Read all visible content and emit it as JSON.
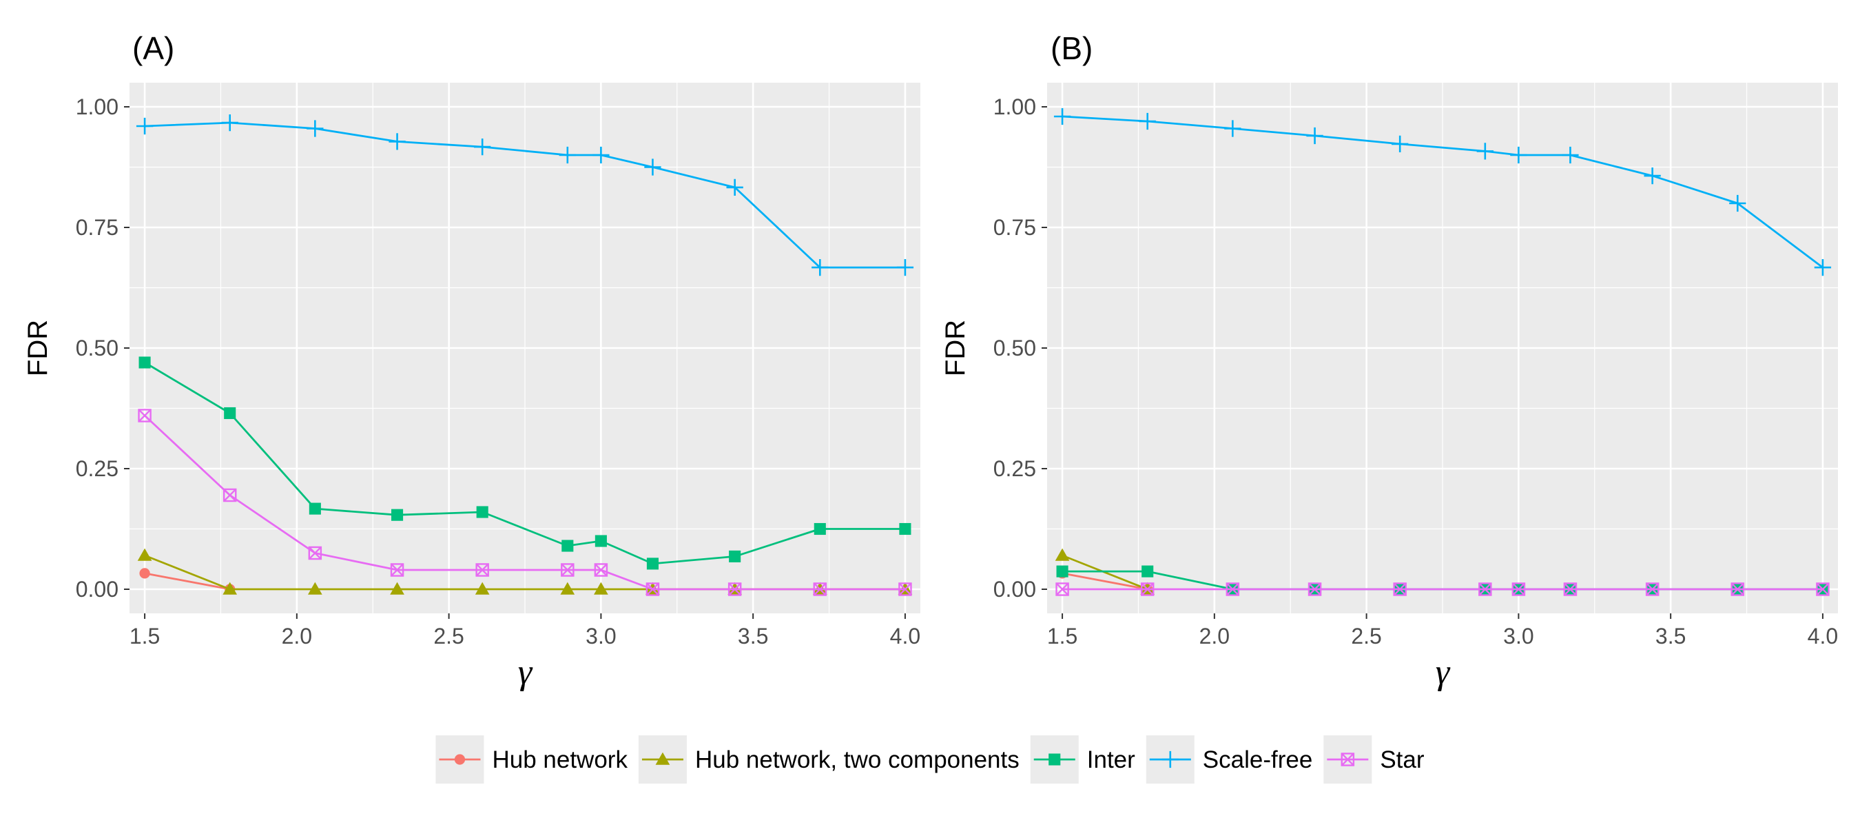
{
  "chart_data": [
    {
      "type": "line",
      "title": "(A)",
      "xlabel": "γ",
      "ylabel": "FDR",
      "xlim": [
        1.45,
        4.05
      ],
      "ylim": [
        -0.05,
        1.05
      ],
      "xticks": [
        1.5,
        2.0,
        2.5,
        3.0,
        3.5,
        4.0
      ],
      "xtick_labels": [
        "1.5",
        "2.0",
        "2.5",
        "3.0",
        "3.5",
        "4.0"
      ],
      "yticks": [
        0.0,
        0.25,
        0.5,
        0.75,
        1.0
      ],
      "ytick_labels": [
        "0.00",
        "0.25",
        "0.50",
        "0.75",
        "1.00"
      ],
      "grid": true,
      "x": [
        1.5,
        1.78,
        2.06,
        2.33,
        2.61,
        2.89,
        3.0,
        3.17,
        3.44,
        3.72,
        4.0
      ],
      "series": [
        {
          "name": "Hub network",
          "values": [
            0.033,
            0.0,
            null,
            null,
            null,
            null,
            null,
            null,
            null,
            null,
            null
          ]
        },
        {
          "name": "Hub network, two components",
          "values": [
            0.07,
            0.0,
            0.0,
            0.0,
            0.0,
            0.0,
            0.0,
            0.0,
            0.0,
            0.0,
            0.0
          ]
        },
        {
          "name": "Inter",
          "values": [
            0.47,
            0.365,
            0.167,
            0.154,
            0.16,
            0.09,
            0.1,
            0.053,
            0.068,
            0.125,
            0.125
          ]
        },
        {
          "name": "Scale-free",
          "values": [
            0.96,
            0.967,
            0.955,
            0.928,
            0.917,
            0.9,
            0.9,
            0.875,
            0.833,
            0.667,
            0.667
          ]
        },
        {
          "name": "Star",
          "values": [
            0.36,
            0.195,
            0.075,
            0.04,
            0.04,
            0.04,
            0.04,
            0.0,
            0.0,
            0.0,
            0.0
          ]
        }
      ]
    },
    {
      "type": "line",
      "title": "(B)",
      "xlabel": "γ",
      "ylabel": "FDR",
      "xlim": [
        1.45,
        4.05
      ],
      "ylim": [
        -0.05,
        1.05
      ],
      "xticks": [
        1.5,
        2.0,
        2.5,
        3.0,
        3.5,
        4.0
      ],
      "xtick_labels": [
        "1.5",
        "2.0",
        "2.5",
        "3.0",
        "3.5",
        "4.0"
      ],
      "yticks": [
        0.0,
        0.25,
        0.5,
        0.75,
        1.0
      ],
      "ytick_labels": [
        "0.00",
        "0.25",
        "0.50",
        "0.75",
        "1.00"
      ],
      "grid": true,
      "x": [
        1.5,
        1.78,
        2.06,
        2.33,
        2.61,
        2.89,
        3.0,
        3.17,
        3.44,
        3.72,
        4.0
      ],
      "series": [
        {
          "name": "Hub network",
          "values": [
            0.033,
            0.0,
            null,
            null,
            null,
            null,
            null,
            null,
            null,
            null,
            null
          ]
        },
        {
          "name": "Hub network, two components",
          "values": [
            0.07,
            0.0,
            null,
            null,
            null,
            null,
            null,
            null,
            null,
            null,
            null
          ]
        },
        {
          "name": "Inter",
          "values": [
            0.037,
            0.037,
            0.0,
            0.0,
            0.0,
            0.0,
            0.0,
            0.0,
            0.0,
            0.0,
            0.0
          ]
        },
        {
          "name": "Scale-free",
          "values": [
            0.98,
            0.97,
            0.955,
            0.94,
            0.923,
            0.908,
            0.9,
            0.9,
            0.857,
            0.8,
            0.667
          ]
        },
        {
          "name": "Star",
          "values": [
            0.0,
            0.0,
            0.0,
            0.0,
            0.0,
            0.0,
            0.0,
            0.0,
            0.0,
            0.0,
            0.0
          ]
        }
      ]
    }
  ],
  "legend": {
    "position": "bottom",
    "items": [
      {
        "name": "Hub network",
        "color": "#F8766D",
        "shape": "circle"
      },
      {
        "name": "Hub network, two components",
        "color": "#A3A500",
        "shape": "triangle"
      },
      {
        "name": "Inter",
        "color": "#00BF7D",
        "shape": "square"
      },
      {
        "name": "Scale-free",
        "color": "#00B0F6",
        "shape": "plus"
      },
      {
        "name": "Star",
        "color": "#E76BF3",
        "shape": "square-cross"
      }
    ]
  },
  "colors": {
    "panel_background": "#EBEBEB",
    "grid": "#FFFFFF"
  }
}
